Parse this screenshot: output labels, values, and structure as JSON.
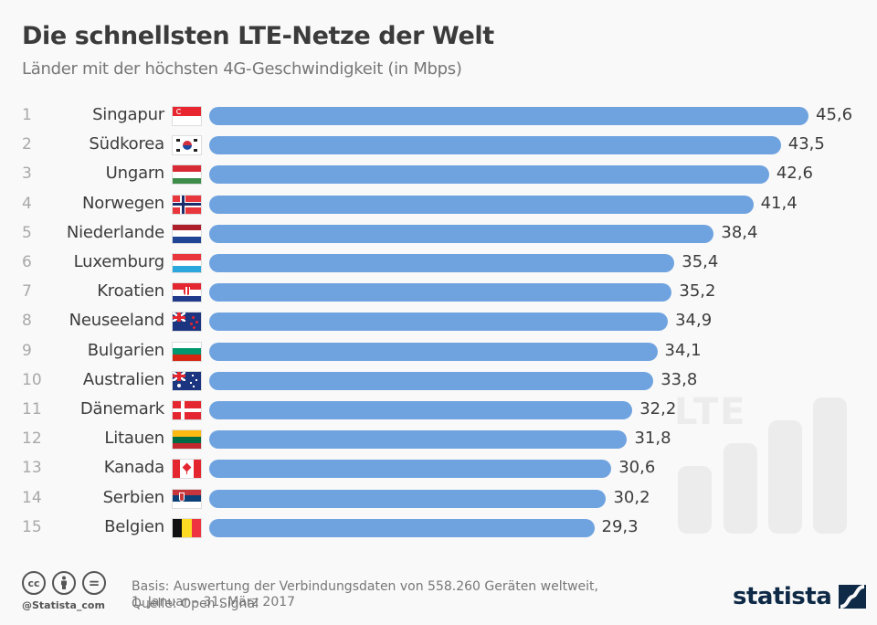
{
  "header": {
    "title": "Die schnellsten LTE-Netze der Welt",
    "subtitle": "Länder mit der höchsten 4G-Geschwindigkeit (in Mbps)"
  },
  "chart_data": {
    "type": "bar",
    "orientation": "horizontal",
    "title": "Die schnellsten LTE-Netze der Welt",
    "subtitle": "Länder mit der höchsten 4G-Geschwindigkeit (in Mbps)",
    "xlabel": "",
    "ylabel": "",
    "unit": "Mbps",
    "grid": false,
    "xlim": [
      0,
      45.6
    ],
    "categories": [
      "Singapur",
      "Südkorea",
      "Ungarn",
      "Norwegen",
      "Niederlande",
      "Luxemburg",
      "Kroatien",
      "Neuseeland",
      "Bulgarien",
      "Australien",
      "Dänemark",
      "Litauen",
      "Kanada",
      "Serbien",
      "Belgien"
    ],
    "ranks": [
      "1",
      "2",
      "3",
      "4",
      "5",
      "6",
      "7",
      "8",
      "9",
      "10",
      "11",
      "12",
      "13",
      "14",
      "15"
    ],
    "values": [
      45.6,
      43.5,
      42.6,
      41.4,
      38.4,
      35.4,
      35.2,
      34.9,
      34.1,
      33.8,
      32.2,
      31.8,
      30.6,
      30.2,
      29.3
    ],
    "value_labels": [
      "45,6",
      "43,5",
      "42,6",
      "41,4",
      "38,4",
      "35,4",
      "35,2",
      "34,9",
      "34,1",
      "33,8",
      "32,2",
      "31,8",
      "30,6",
      "30,2",
      "29,3"
    ],
    "flags": [
      "flag-singapore",
      "flag-south-korea",
      "flag-hungary",
      "flag-norway",
      "flag-netherlands",
      "flag-luxembourg",
      "flag-croatia",
      "flag-new-zealand",
      "flag-bulgaria",
      "flag-australia",
      "flag-denmark",
      "flag-lithuania",
      "flag-canada",
      "flag-serbia",
      "flag-belgium"
    ],
    "bar_color": "#6fa3e0"
  },
  "decoration": {
    "lte_label": "LTE",
    "icon": "signal-bars-icon"
  },
  "footer": {
    "basis_line1": "Basis: Auswertung der Verbindungsdaten von 558.260 Geräten weltweit,",
    "basis_line2": "1. Januar – 31. März 2017",
    "source": "Quelle: Open Signal",
    "handle": "@Statista_com",
    "license_icons": [
      "cc-icon",
      "by-icon",
      "nd-icon"
    ],
    "cc_label": "cc",
    "nd_label": "=",
    "brand": "statista"
  },
  "colors": {
    "bar": "#6fa3e0",
    "brand": "#0e2a47",
    "background": "#f9f9f9"
  }
}
